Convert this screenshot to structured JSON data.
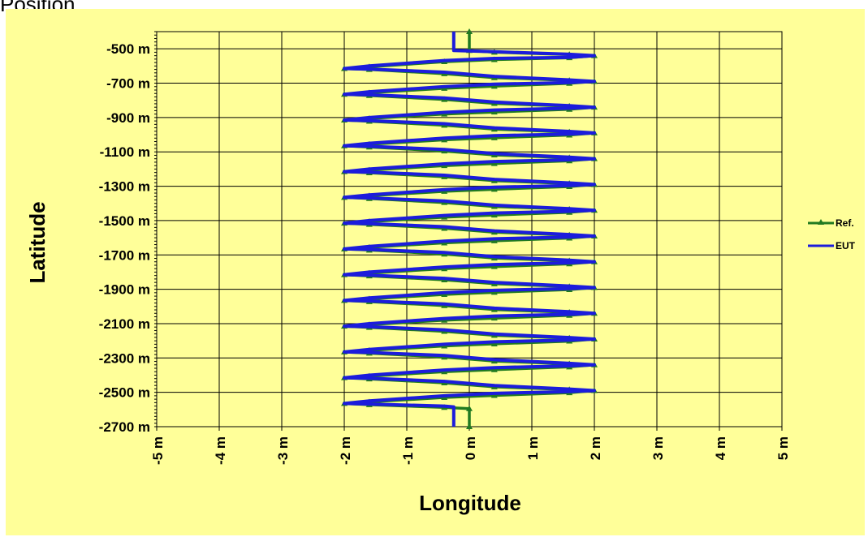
{
  "page": {
    "title": "Position"
  },
  "colors": {
    "background": "#ffff99",
    "ref": "#217a21",
    "eut": "#1c1cdc",
    "grid": "#000000"
  },
  "chart_data": {
    "type": "line",
    "xlabel": "Longitude",
    "ylabel": "Latitude",
    "xlim": [
      -5,
      5
    ],
    "ylim": [
      -2700,
      -400
    ],
    "x_ticks": [
      -5,
      -4,
      -3,
      -2,
      -1,
      0,
      1,
      2,
      3,
      4,
      5
    ],
    "x_tick_labels": [
      "-5 m",
      "-4 m",
      "-3 m",
      "-2 m",
      "-1 m",
      "0 m",
      "1 m",
      "2 m",
      "3 m",
      "4 m",
      "5 m"
    ],
    "y_ticks": [
      -500,
      -700,
      -900,
      -1100,
      -1300,
      -1500,
      -1700,
      -1900,
      -2100,
      -2300,
      -2500,
      -2700
    ],
    "y_tick_labels": [
      "-500 m",
      "-700 m",
      "-900 m",
      "-1100 m",
      "-1300 m",
      "-1500 m",
      "-1700 m",
      "-1900 m",
      "-2100 m",
      "-2300 m",
      "-2500 m",
      "-2700 m"
    ],
    "grid": true,
    "legend_position": "right",
    "series": [
      {
        "name": "Ref.",
        "color": "#217a21",
        "marker": "triangle",
        "points": [
          [
            0,
            -400
          ],
          [
            0,
            -505
          ],
          [
            0,
            -510
          ],
          [
            0.4,
            -520
          ],
          [
            1.6,
            -533
          ],
          [
            2,
            -540
          ],
          [
            1.6,
            -552
          ],
          [
            0.4,
            -563
          ],
          [
            -0.4,
            -575
          ],
          [
            -1.6,
            -605
          ],
          [
            -2,
            -615
          ],
          [
            -1.6,
            -620
          ],
          [
            -0.4,
            -645
          ],
          [
            0.4,
            -668
          ],
          [
            1.6,
            -684
          ],
          [
            2,
            -690
          ],
          [
            1.6,
            -701
          ],
          [
            0.4,
            -718
          ],
          [
            -0.4,
            -730
          ],
          [
            -1.6,
            -756
          ],
          [
            -2,
            -765
          ],
          [
            -1.6,
            -772
          ],
          [
            -0.4,
            -795
          ],
          [
            0.4,
            -818
          ],
          [
            1.6,
            -834
          ],
          [
            2,
            -840
          ],
          [
            1.6,
            -852
          ],
          [
            0.4,
            -868
          ],
          [
            -0.4,
            -880
          ],
          [
            -1.6,
            -906
          ],
          [
            -2,
            -915
          ],
          [
            -1.6,
            -922
          ],
          [
            -0.4,
            -945
          ],
          [
            0.4,
            -968
          ],
          [
            1.6,
            -984
          ],
          [
            2,
            -990
          ],
          [
            1.6,
            -1002
          ],
          [
            0.4,
            -1018
          ],
          [
            -0.4,
            -1030
          ],
          [
            -1.6,
            -1056
          ],
          [
            -2,
            -1065
          ],
          [
            -1.6,
            -1072
          ],
          [
            -0.4,
            -1095
          ],
          [
            0.4,
            -1118
          ],
          [
            1.6,
            -1134
          ],
          [
            2,
            -1140
          ],
          [
            1.6,
            -1152
          ],
          [
            0.4,
            -1168
          ],
          [
            -0.4,
            -1180
          ],
          [
            -1.6,
            -1206
          ],
          [
            -2,
            -1215
          ],
          [
            -1.6,
            -1222
          ],
          [
            -0.4,
            -1245
          ],
          [
            0.4,
            -1268
          ],
          [
            1.6,
            -1284
          ],
          [
            2,
            -1290
          ],
          [
            1.6,
            -1302
          ],
          [
            0.4,
            -1318
          ],
          [
            -0.4,
            -1330
          ],
          [
            -1.6,
            -1356
          ],
          [
            -2,
            -1365
          ],
          [
            -1.6,
            -1372
          ],
          [
            -0.4,
            -1395
          ],
          [
            0.4,
            -1418
          ],
          [
            1.6,
            -1434
          ],
          [
            2,
            -1440
          ],
          [
            1.6,
            -1452
          ],
          [
            0.4,
            -1468
          ],
          [
            -0.4,
            -1480
          ],
          [
            -1.6,
            -1506
          ],
          [
            -2,
            -1515
          ],
          [
            -1.6,
            -1522
          ],
          [
            -0.4,
            -1545
          ],
          [
            0.4,
            -1568
          ],
          [
            1.6,
            -1584
          ],
          [
            2,
            -1590
          ],
          [
            1.6,
            -1602
          ],
          [
            0.4,
            -1618
          ],
          [
            -0.4,
            -1630
          ],
          [
            -1.6,
            -1656
          ],
          [
            -2,
            -1665
          ],
          [
            -1.6,
            -1672
          ],
          [
            -0.4,
            -1695
          ],
          [
            0.4,
            -1718
          ],
          [
            1.6,
            -1734
          ],
          [
            2,
            -1740
          ],
          [
            1.6,
            -1752
          ],
          [
            0.4,
            -1768
          ],
          [
            -0.4,
            -1780
          ],
          [
            -1.6,
            -1806
          ],
          [
            -2,
            -1815
          ],
          [
            -1.6,
            -1822
          ],
          [
            -0.4,
            -1845
          ],
          [
            0.4,
            -1868
          ],
          [
            1.6,
            -1884
          ],
          [
            2,
            -1890
          ],
          [
            1.6,
            -1902
          ],
          [
            0.4,
            -1918
          ],
          [
            -0.4,
            -1930
          ],
          [
            -1.6,
            -1956
          ],
          [
            -2,
            -1965
          ],
          [
            -1.6,
            -1972
          ],
          [
            -0.4,
            -1995
          ],
          [
            0.4,
            -2018
          ],
          [
            1.6,
            -2034
          ],
          [
            2,
            -2040
          ],
          [
            1.6,
            -2052
          ],
          [
            0.4,
            -2068
          ],
          [
            -0.4,
            -2080
          ],
          [
            -1.6,
            -2106
          ],
          [
            -2,
            -2115
          ],
          [
            -1.6,
            -2122
          ],
          [
            -0.4,
            -2145
          ],
          [
            0.4,
            -2168
          ],
          [
            1.6,
            -2184
          ],
          [
            2,
            -2190
          ],
          [
            1.6,
            -2202
          ],
          [
            0.4,
            -2218
          ],
          [
            -0.4,
            -2230
          ],
          [
            -1.6,
            -2256
          ],
          [
            -2,
            -2265
          ],
          [
            -1.6,
            -2272
          ],
          [
            -0.4,
            -2295
          ],
          [
            0.4,
            -2318
          ],
          [
            1.6,
            -2334
          ],
          [
            2,
            -2340
          ],
          [
            1.6,
            -2352
          ],
          [
            0.4,
            -2368
          ],
          [
            -0.4,
            -2380
          ],
          [
            -1.6,
            -2406
          ],
          [
            -2,
            -2415
          ],
          [
            -1.6,
            -2422
          ],
          [
            -0.4,
            -2445
          ],
          [
            0.4,
            -2468
          ],
          [
            1.6,
            -2484
          ],
          [
            2,
            -2490
          ],
          [
            1.6,
            -2502
          ],
          [
            0.4,
            -2518
          ],
          [
            -0.4,
            -2530
          ],
          [
            -1.6,
            -2556
          ],
          [
            -2,
            -2565
          ],
          [
            -1.6,
            -2572
          ],
          [
            -0.4,
            -2588
          ],
          [
            0,
            -2595
          ],
          [
            0,
            -2700
          ]
        ]
      },
      {
        "name": "EUT",
        "color": "#1c1cdc",
        "marker": "none",
        "points": [
          [
            -0.25,
            -400
          ],
          [
            -0.25,
            -510
          ],
          [
            0.4,
            -517
          ],
          [
            1.6,
            -532
          ],
          [
            2,
            -540
          ],
          [
            1.6,
            -550
          ],
          [
            0.4,
            -556
          ],
          [
            -0.4,
            -568
          ],
          [
            -1.6,
            -600
          ],
          [
            -2,
            -615
          ],
          [
            -1.6,
            -618
          ],
          [
            -0.4,
            -636
          ],
          [
            0.4,
            -660
          ],
          [
            1.6,
            -681
          ],
          [
            2,
            -690
          ],
          [
            1.6,
            -696
          ],
          [
            0.4,
            -706
          ],
          [
            -0.4,
            -720
          ],
          [
            -1.6,
            -750
          ],
          [
            -2,
            -765
          ],
          [
            -1.6,
            -768
          ],
          [
            -0.4,
            -786
          ],
          [
            0.4,
            -810
          ],
          [
            1.6,
            -831
          ],
          [
            2,
            -840
          ],
          [
            1.6,
            -846
          ],
          [
            0.4,
            -856
          ],
          [
            -0.4,
            -870
          ],
          [
            -1.6,
            -900
          ],
          [
            -2,
            -915
          ],
          [
            -1.6,
            -918
          ],
          [
            -0.4,
            -936
          ],
          [
            0.4,
            -960
          ],
          [
            1.6,
            -981
          ],
          [
            2,
            -990
          ],
          [
            1.6,
            -996
          ],
          [
            0.4,
            -1006
          ],
          [
            -0.4,
            -1020
          ],
          [
            -1.6,
            -1050
          ],
          [
            -2,
            -1065
          ],
          [
            -1.6,
            -1068
          ],
          [
            -0.4,
            -1086
          ],
          [
            0.4,
            -1110
          ],
          [
            1.6,
            -1131
          ],
          [
            2,
            -1140
          ],
          [
            1.6,
            -1146
          ],
          [
            0.4,
            -1156
          ],
          [
            -0.4,
            -1170
          ],
          [
            -1.6,
            -1200
          ],
          [
            -2,
            -1215
          ],
          [
            -1.6,
            -1218
          ],
          [
            -0.4,
            -1236
          ],
          [
            0.4,
            -1260
          ],
          [
            1.6,
            -1281
          ],
          [
            2,
            -1290
          ],
          [
            1.6,
            -1296
          ],
          [
            0.4,
            -1306
          ],
          [
            -0.4,
            -1320
          ],
          [
            -1.6,
            -1350
          ],
          [
            -2,
            -1365
          ],
          [
            -1.6,
            -1368
          ],
          [
            -0.4,
            -1386
          ],
          [
            0.4,
            -1410
          ],
          [
            1.6,
            -1431
          ],
          [
            2,
            -1440
          ],
          [
            1.6,
            -1446
          ],
          [
            0.4,
            -1456
          ],
          [
            -0.4,
            -1470
          ],
          [
            -1.6,
            -1500
          ],
          [
            -2,
            -1515
          ],
          [
            -1.6,
            -1518
          ],
          [
            -0.4,
            -1536
          ],
          [
            0.4,
            -1560
          ],
          [
            1.6,
            -1581
          ],
          [
            2,
            -1590
          ],
          [
            1.6,
            -1596
          ],
          [
            0.4,
            -1606
          ],
          [
            -0.4,
            -1620
          ],
          [
            -1.6,
            -1650
          ],
          [
            -2,
            -1665
          ],
          [
            -1.6,
            -1668
          ],
          [
            -0.4,
            -1686
          ],
          [
            0.4,
            -1710
          ],
          [
            1.6,
            -1731
          ],
          [
            2,
            -1740
          ],
          [
            1.6,
            -1746
          ],
          [
            0.4,
            -1756
          ],
          [
            -0.4,
            -1770
          ],
          [
            -1.6,
            -1800
          ],
          [
            -2,
            -1815
          ],
          [
            -1.6,
            -1818
          ],
          [
            -0.4,
            -1836
          ],
          [
            0.4,
            -1860
          ],
          [
            1.6,
            -1881
          ],
          [
            2,
            -1890
          ],
          [
            1.6,
            -1896
          ],
          [
            0.4,
            -1906
          ],
          [
            -0.4,
            -1920
          ],
          [
            -1.6,
            -1950
          ],
          [
            -2,
            -1965
          ],
          [
            -1.6,
            -1968
          ],
          [
            -0.4,
            -1986
          ],
          [
            0.4,
            -2010
          ],
          [
            1.6,
            -2031
          ],
          [
            2,
            -2040
          ],
          [
            1.6,
            -2046
          ],
          [
            0.4,
            -2056
          ],
          [
            -0.4,
            -2070
          ],
          [
            -1.6,
            -2100
          ],
          [
            -2,
            -2115
          ],
          [
            -1.6,
            -2118
          ],
          [
            -0.4,
            -2136
          ],
          [
            0.4,
            -2160
          ],
          [
            1.6,
            -2181
          ],
          [
            2,
            -2190
          ],
          [
            1.6,
            -2196
          ],
          [
            0.4,
            -2206
          ],
          [
            -0.4,
            -2220
          ],
          [
            -1.6,
            -2250
          ],
          [
            -2,
            -2265
          ],
          [
            -1.6,
            -2268
          ],
          [
            -0.4,
            -2286
          ],
          [
            0.4,
            -2310
          ],
          [
            1.6,
            -2331
          ],
          [
            2,
            -2340
          ],
          [
            1.6,
            -2346
          ],
          [
            0.4,
            -2356
          ],
          [
            -0.4,
            -2370
          ],
          [
            -1.6,
            -2400
          ],
          [
            -2,
            -2415
          ],
          [
            -1.6,
            -2418
          ],
          [
            -0.4,
            -2436
          ],
          [
            0.4,
            -2460
          ],
          [
            1.6,
            -2481
          ],
          [
            2,
            -2490
          ],
          [
            1.6,
            -2496
          ],
          [
            0.4,
            -2506
          ],
          [
            -0.4,
            -2520
          ],
          [
            -1.6,
            -2550
          ],
          [
            -2,
            -2565
          ],
          [
            -1.6,
            -2568
          ],
          [
            -0.4,
            -2580
          ],
          [
            -0.25,
            -2585
          ],
          [
            -0.25,
            -2700
          ]
        ]
      }
    ]
  }
}
